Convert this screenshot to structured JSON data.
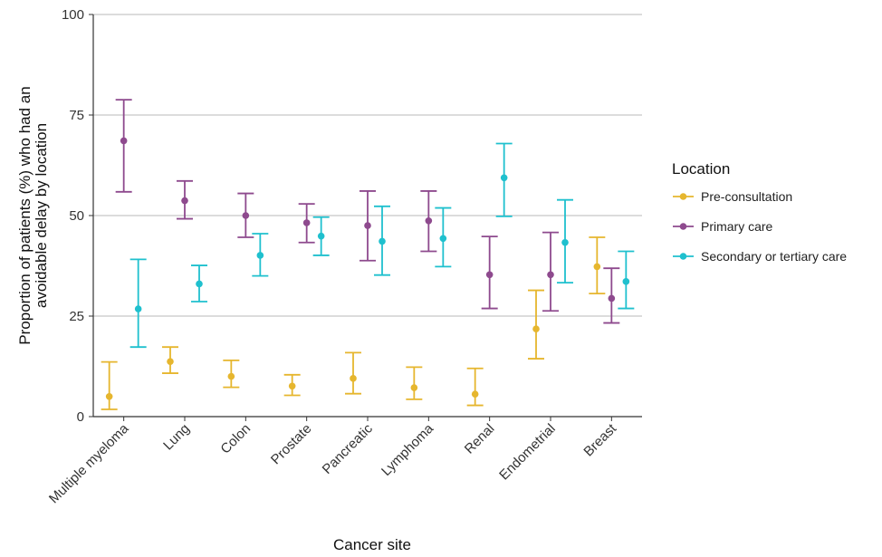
{
  "chart_data": {
    "type": "scatter",
    "subtype": "point-with-error-bars",
    "xlabel": "Cancer site",
    "ylabel": "Proportion of patients (%) who had an avoidable delay by location",
    "ylabel_lines": [
      "Proportion of patients (%) who had an",
      "avoidable delay by location"
    ],
    "categories": [
      "Multiple myeloma",
      "Lung",
      "Colon",
      "Prostate",
      "Pancreatic",
      "Lymphoma",
      "Renal",
      "Endometrial",
      "Breast"
    ],
    "ylim": [
      0,
      100
    ],
    "yticks": [
      0,
      25,
      50,
      75,
      100
    ],
    "grid": "horizontal major",
    "legend": {
      "title": "Location",
      "position": "right"
    },
    "series": [
      {
        "name": "Pre-consultation",
        "color": "#E6B62E",
        "values": [
          5,
          13.7,
          10,
          7.6,
          9.5,
          7.2,
          5.6,
          21.8,
          37.3
        ],
        "lower": [
          1.8,
          10.8,
          7.3,
          5.3,
          5.7,
          4.3,
          2.8,
          14.4,
          30.6
        ],
        "upper": [
          13.6,
          17.3,
          14,
          10.4,
          15.9,
          12.3,
          12,
          31.4,
          44.6
        ]
      },
      {
        "name": "Primary care",
        "color": "#8E4A8E",
        "values": [
          68.6,
          53.7,
          50,
          48.2,
          47.5,
          48.7,
          35.3,
          35.3,
          29.4
        ],
        "lower": [
          55.9,
          49.2,
          44.6,
          43.3,
          38.8,
          41.1,
          26.9,
          26.3,
          23.3
        ],
        "upper": [
          78.8,
          58.6,
          55.5,
          52.9,
          56.1,
          56.1,
          44.8,
          45.8,
          36.9
        ]
      },
      {
        "name": "Secondary or tertiary care",
        "color": "#1FC0CE",
        "values": [
          26.8,
          33,
          40.1,
          44.9,
          43.6,
          44.3,
          59.4,
          43.3,
          33.6
        ],
        "lower": [
          17.3,
          28.6,
          35,
          40.1,
          35.2,
          37.3,
          49.8,
          33.3,
          26.9
        ],
        "upper": [
          39.1,
          37.6,
          45.5,
          49.6,
          52.3,
          51.9,
          67.9,
          53.9,
          41.1
        ]
      }
    ]
  }
}
